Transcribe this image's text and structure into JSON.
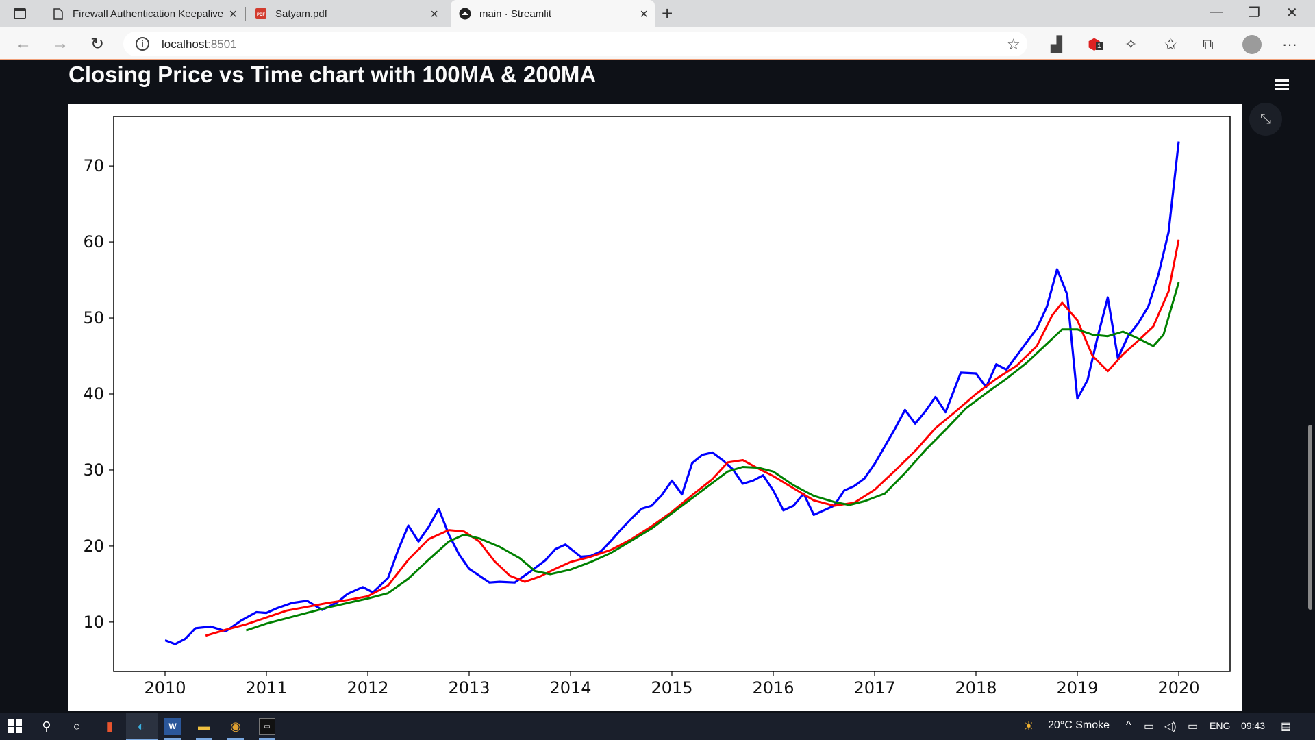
{
  "browser": {
    "tabs": [
      {
        "title": "Firewall Authentication Keepalive",
        "icon": "page-icon"
      },
      {
        "title": "Satyam.pdf",
        "icon": "pdf-icon"
      },
      {
        "title": "main · Streamlit",
        "icon": "streamlit-icon"
      }
    ],
    "url_host": "localhost",
    "url_port": ":8501",
    "extension_badge": "1"
  },
  "app": {
    "title": "Closing Price vs Time chart with 100MA & 200MA"
  },
  "chart_data": {
    "type": "line",
    "title": "",
    "xlabel": "",
    "ylabel": "",
    "xlim": [
      2010.0,
      2020.0
    ],
    "ylim": [
      3.5,
      76.5
    ],
    "x_ticks": [
      "2010",
      "2011",
      "2012",
      "2013",
      "2014",
      "2015",
      "2016",
      "2017",
      "2018",
      "2019",
      "2020"
    ],
    "y_ticks": [
      "10",
      "20",
      "30",
      "40",
      "50",
      "60",
      "70"
    ],
    "grid": false,
    "legend": "none",
    "series": [
      {
        "color": "#0000ff",
        "points": [
          [
            2010.0,
            7.6
          ],
          [
            2010.1,
            7.1
          ],
          [
            2010.2,
            7.8
          ],
          [
            2010.3,
            9.2
          ],
          [
            2010.45,
            9.4
          ],
          [
            2010.6,
            8.8
          ],
          [
            2010.75,
            10.2
          ],
          [
            2010.9,
            11.3
          ],
          [
            2011.0,
            11.2
          ],
          [
            2011.1,
            11.8
          ],
          [
            2011.25,
            12.5
          ],
          [
            2011.4,
            12.8
          ],
          [
            2011.55,
            11.6
          ],
          [
            2011.7,
            12.6
          ],
          [
            2011.8,
            13.7
          ],
          [
            2011.95,
            14.6
          ],
          [
            2012.05,
            13.9
          ],
          [
            2012.2,
            15.8
          ],
          [
            2012.3,
            19.5
          ],
          [
            2012.4,
            22.7
          ],
          [
            2012.5,
            20.6
          ],
          [
            2012.6,
            22.5
          ],
          [
            2012.7,
            24.9
          ],
          [
            2012.8,
            21.5
          ],
          [
            2012.9,
            18.9
          ],
          [
            2013.0,
            17.0
          ],
          [
            2013.1,
            16.1
          ],
          [
            2013.2,
            15.2
          ],
          [
            2013.3,
            15.3
          ],
          [
            2013.45,
            15.2
          ],
          [
            2013.6,
            16.6
          ],
          [
            2013.75,
            18.1
          ],
          [
            2013.85,
            19.6
          ],
          [
            2013.95,
            20.2
          ],
          [
            2014.1,
            18.6
          ],
          [
            2014.2,
            18.7
          ],
          [
            2014.3,
            19.3
          ],
          [
            2014.4,
            20.7
          ],
          [
            2014.5,
            22.2
          ],
          [
            2014.6,
            23.6
          ],
          [
            2014.7,
            24.9
          ],
          [
            2014.8,
            25.3
          ],
          [
            2014.9,
            26.7
          ],
          [
            2015.0,
            28.6
          ],
          [
            2015.1,
            26.8
          ],
          [
            2015.2,
            30.9
          ],
          [
            2015.3,
            32.0
          ],
          [
            2015.4,
            32.3
          ],
          [
            2015.5,
            31.3
          ],
          [
            2015.6,
            30.1
          ],
          [
            2015.7,
            28.2
          ],
          [
            2015.8,
            28.6
          ],
          [
            2015.9,
            29.3
          ],
          [
            2016.0,
            27.3
          ],
          [
            2016.1,
            24.7
          ],
          [
            2016.2,
            25.3
          ],
          [
            2016.3,
            26.9
          ],
          [
            2016.4,
            24.1
          ],
          [
            2016.5,
            24.7
          ],
          [
            2016.6,
            25.3
          ],
          [
            2016.7,
            27.3
          ],
          [
            2016.8,
            27.9
          ],
          [
            2016.9,
            28.9
          ],
          [
            2017.0,
            30.8
          ],
          [
            2017.1,
            33.1
          ],
          [
            2017.2,
            35.4
          ],
          [
            2017.3,
            37.9
          ],
          [
            2017.4,
            36.1
          ],
          [
            2017.5,
            37.7
          ],
          [
            2017.6,
            39.6
          ],
          [
            2017.7,
            37.6
          ],
          [
            2017.85,
            42.8
          ],
          [
            2018.0,
            42.7
          ],
          [
            2018.1,
            40.9
          ],
          [
            2018.2,
            43.9
          ],
          [
            2018.3,
            43.2
          ],
          [
            2018.45,
            45.9
          ],
          [
            2018.6,
            48.6
          ],
          [
            2018.7,
            51.5
          ],
          [
            2018.8,
            56.4
          ],
          [
            2018.9,
            53.1
          ],
          [
            2019.0,
            39.4
          ],
          [
            2019.1,
            41.8
          ],
          [
            2019.2,
            47.5
          ],
          [
            2019.3,
            52.7
          ],
          [
            2019.4,
            44.7
          ],
          [
            2019.5,
            47.6
          ],
          [
            2019.6,
            49.3
          ],
          [
            2019.7,
            51.5
          ],
          [
            2019.8,
            55.7
          ],
          [
            2019.9,
            61.3
          ],
          [
            2020.0,
            73.2
          ]
        ]
      },
      {
        "color": "#ff0000",
        "points": [
          [
            2010.4,
            8.2
          ],
          [
            2010.6,
            9.0
          ],
          [
            2010.8,
            9.7
          ],
          [
            2011.0,
            10.6
          ],
          [
            2011.2,
            11.5
          ],
          [
            2011.4,
            12.0
          ],
          [
            2011.6,
            12.5
          ],
          [
            2011.8,
            12.9
          ],
          [
            2012.0,
            13.4
          ],
          [
            2012.2,
            14.8
          ],
          [
            2012.4,
            18.2
          ],
          [
            2012.6,
            20.9
          ],
          [
            2012.8,
            22.1
          ],
          [
            2012.95,
            21.9
          ],
          [
            2013.1,
            20.6
          ],
          [
            2013.25,
            18.0
          ],
          [
            2013.4,
            16.1
          ],
          [
            2013.55,
            15.3
          ],
          [
            2013.7,
            16.0
          ],
          [
            2013.85,
            17.0
          ],
          [
            2014.0,
            17.9
          ],
          [
            2014.2,
            18.6
          ],
          [
            2014.4,
            19.5
          ],
          [
            2014.6,
            20.9
          ],
          [
            2014.8,
            22.6
          ],
          [
            2015.0,
            24.5
          ],
          [
            2015.2,
            26.7
          ],
          [
            2015.4,
            28.8
          ],
          [
            2015.55,
            31.0
          ],
          [
            2015.7,
            31.3
          ],
          [
            2015.85,
            30.2
          ],
          [
            2016.0,
            29.2
          ],
          [
            2016.2,
            27.6
          ],
          [
            2016.4,
            26.0
          ],
          [
            2016.6,
            25.3
          ],
          [
            2016.8,
            25.7
          ],
          [
            2017.0,
            27.4
          ],
          [
            2017.2,
            29.9
          ],
          [
            2017.4,
            32.5
          ],
          [
            2017.6,
            35.5
          ],
          [
            2017.8,
            37.7
          ],
          [
            2018.0,
            40.0
          ],
          [
            2018.2,
            42.0
          ],
          [
            2018.4,
            43.7
          ],
          [
            2018.6,
            46.3
          ],
          [
            2018.75,
            50.3
          ],
          [
            2018.85,
            52.0
          ],
          [
            2019.0,
            49.7
          ],
          [
            2019.15,
            45.0
          ],
          [
            2019.3,
            43.0
          ],
          [
            2019.45,
            45.2
          ],
          [
            2019.6,
            47.0
          ],
          [
            2019.75,
            48.9
          ],
          [
            2019.9,
            53.5
          ],
          [
            2020.0,
            60.3
          ]
        ]
      },
      {
        "color": "#008000",
        "points": [
          [
            2010.8,
            8.9
          ],
          [
            2011.0,
            9.8
          ],
          [
            2011.2,
            10.5
          ],
          [
            2011.4,
            11.2
          ],
          [
            2011.6,
            11.9
          ],
          [
            2011.8,
            12.5
          ],
          [
            2012.0,
            13.1
          ],
          [
            2012.2,
            13.8
          ],
          [
            2012.4,
            15.7
          ],
          [
            2012.6,
            18.2
          ],
          [
            2012.8,
            20.6
          ],
          [
            2012.95,
            21.5
          ],
          [
            2013.1,
            21.0
          ],
          [
            2013.3,
            19.9
          ],
          [
            2013.5,
            18.4
          ],
          [
            2013.65,
            16.7
          ],
          [
            2013.8,
            16.3
          ],
          [
            2014.0,
            16.9
          ],
          [
            2014.2,
            17.9
          ],
          [
            2014.4,
            19.1
          ],
          [
            2014.6,
            20.7
          ],
          [
            2014.8,
            22.3
          ],
          [
            2015.0,
            24.3
          ],
          [
            2015.2,
            26.3
          ],
          [
            2015.4,
            28.3
          ],
          [
            2015.55,
            29.8
          ],
          [
            2015.7,
            30.4
          ],
          [
            2015.85,
            30.3
          ],
          [
            2016.0,
            29.8
          ],
          [
            2016.2,
            28.0
          ],
          [
            2016.4,
            26.6
          ],
          [
            2016.6,
            25.8
          ],
          [
            2016.75,
            25.4
          ],
          [
            2016.9,
            25.9
          ],
          [
            2017.1,
            26.9
          ],
          [
            2017.3,
            29.6
          ],
          [
            2017.5,
            32.6
          ],
          [
            2017.7,
            35.3
          ],
          [
            2017.9,
            38.1
          ],
          [
            2018.1,
            40.1
          ],
          [
            2018.3,
            42.0
          ],
          [
            2018.5,
            44.1
          ],
          [
            2018.7,
            46.6
          ],
          [
            2018.85,
            48.5
          ],
          [
            2019.0,
            48.5
          ],
          [
            2019.15,
            47.8
          ],
          [
            2019.3,
            47.6
          ],
          [
            2019.45,
            48.2
          ],
          [
            2019.6,
            47.3
          ],
          [
            2019.75,
            46.3
          ],
          [
            2019.85,
            47.8
          ],
          [
            2020.0,
            54.7
          ]
        ]
      }
    ]
  },
  "taskbar": {
    "weather": "20°C  Smoke",
    "language": "ENG",
    "time": "09:43"
  }
}
